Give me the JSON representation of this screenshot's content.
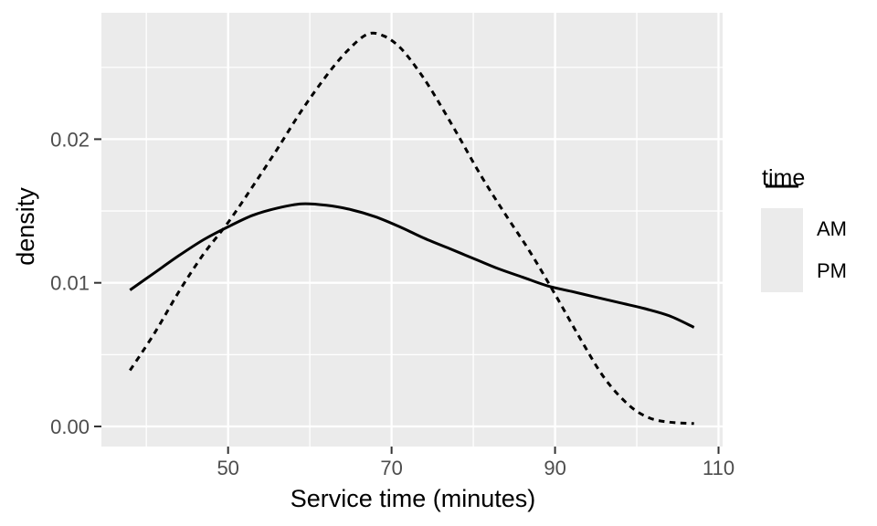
{
  "figure": {
    "background": "#ffffff"
  },
  "chart_data": {
    "type": "line",
    "title": "",
    "xlabel": "Service time (minutes)",
    "ylabel": "density",
    "xlim": [
      34.5,
      110.5
    ],
    "ylim": [
      -0.0014,
      0.0288
    ],
    "grid": "on",
    "x_major_ticks": [
      50,
      70,
      90,
      110
    ],
    "x_major_tick_labels": [
      "50",
      "70",
      "90",
      "110"
    ],
    "x_minor_gridlines": [
      40,
      60,
      80,
      100
    ],
    "y_major_ticks": [
      0,
      0.01,
      0.02
    ],
    "y_major_tick_labels": [
      "0.00",
      "0.01",
      "0.02"
    ],
    "y_minor_gridlines": [
      0.005,
      0.015,
      0.025
    ],
    "legend": {
      "title": "time",
      "position": "right",
      "entries": [
        {
          "label": "AM",
          "linetype": "solid"
        },
        {
          "label": "PM",
          "linetype": "dashed"
        }
      ]
    },
    "series": [
      {
        "name": "AM",
        "linetype": "solid",
        "color": "#000000",
        "points": [
          [
            38,
            0.0095
          ],
          [
            41,
            0.0107
          ],
          [
            44,
            0.0119
          ],
          [
            47,
            0.013
          ],
          [
            50,
            0.0139
          ],
          [
            53,
            0.0147
          ],
          [
            56,
            0.0152
          ],
          [
            59,
            0.0155
          ],
          [
            62,
            0.0154
          ],
          [
            65,
            0.0151
          ],
          [
            68,
            0.0146
          ],
          [
            71,
            0.0139
          ],
          [
            74,
            0.0131
          ],
          [
            77,
            0.0124
          ],
          [
            80,
            0.0117
          ],
          [
            83,
            0.011
          ],
          [
            86,
            0.0104
          ],
          [
            89,
            0.0098
          ],
          [
            92,
            0.0094
          ],
          [
            95,
            0.009
          ],
          [
            98,
            0.0086
          ],
          [
            101,
            0.0082
          ],
          [
            104,
            0.0077
          ],
          [
            107,
            0.0069
          ]
        ]
      },
      {
        "name": "PM",
        "linetype": "dashed",
        "color": "#000000",
        "points": [
          [
            38,
            0.0039
          ],
          [
            41,
            0.0065
          ],
          [
            44,
            0.0094
          ],
          [
            47,
            0.012
          ],
          [
            50,
            0.0142
          ],
          [
            53,
            0.0167
          ],
          [
            56,
            0.0193
          ],
          [
            59,
            0.022
          ],
          [
            62,
            0.0244
          ],
          [
            64.5,
            0.0261
          ],
          [
            67,
            0.0273
          ],
          [
            69,
            0.0272
          ],
          [
            71,
            0.0264
          ],
          [
            73,
            0.025
          ],
          [
            75,
            0.0233
          ],
          [
            78,
            0.0204
          ],
          [
            81,
            0.0174
          ],
          [
            84,
            0.0147
          ],
          [
            87,
            0.0121
          ],
          [
            90,
            0.0092
          ],
          [
            93,
            0.0062
          ],
          [
            96,
            0.0034
          ],
          [
            99,
            0.0015
          ],
          [
            101.5,
            0.0006
          ],
          [
            104,
            0.0003
          ],
          [
            107,
            0.0002
          ]
        ]
      }
    ],
    "style": {
      "panel_bg": "#EBEBEB",
      "gridline_color": "#FFFFFF",
      "tick_label_color": "#4D4D4D",
      "tick_mark_color": "#333333",
      "text_color": "#000000"
    }
  }
}
